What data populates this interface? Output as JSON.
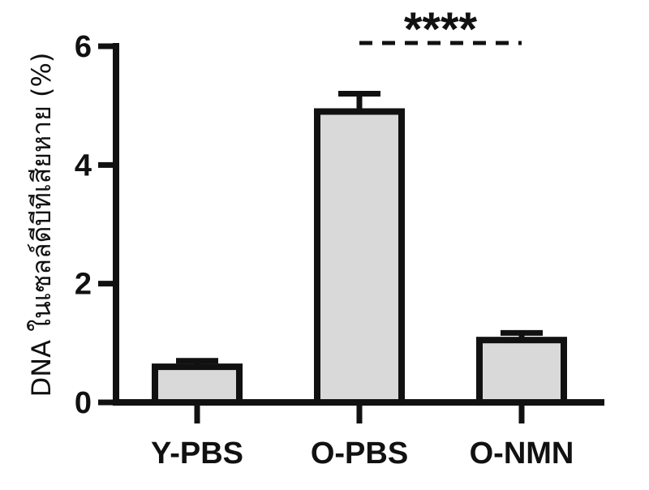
{
  "chart_data": {
    "type": "bar",
    "categories": [
      "Y-PBS",
      "O-PBS",
      "O-NMN"
    ],
    "values": [
      0.6,
      4.9,
      1.05
    ],
    "errors": [
      0.1,
      0.3,
      0.12
    ],
    "ylabel": "DNA ในเซลล์ดีบีทีเสียหาย (%)",
    "ylim": [
      0,
      6
    ],
    "yticks": [
      0,
      2,
      4,
      6
    ],
    "bar_fill": "#d9d9d9",
    "bar_stroke": "#111111",
    "significance": {
      "from": "O-PBS",
      "to": "O-NMN",
      "label": "****"
    },
    "grid": false,
    "legend": "none"
  }
}
